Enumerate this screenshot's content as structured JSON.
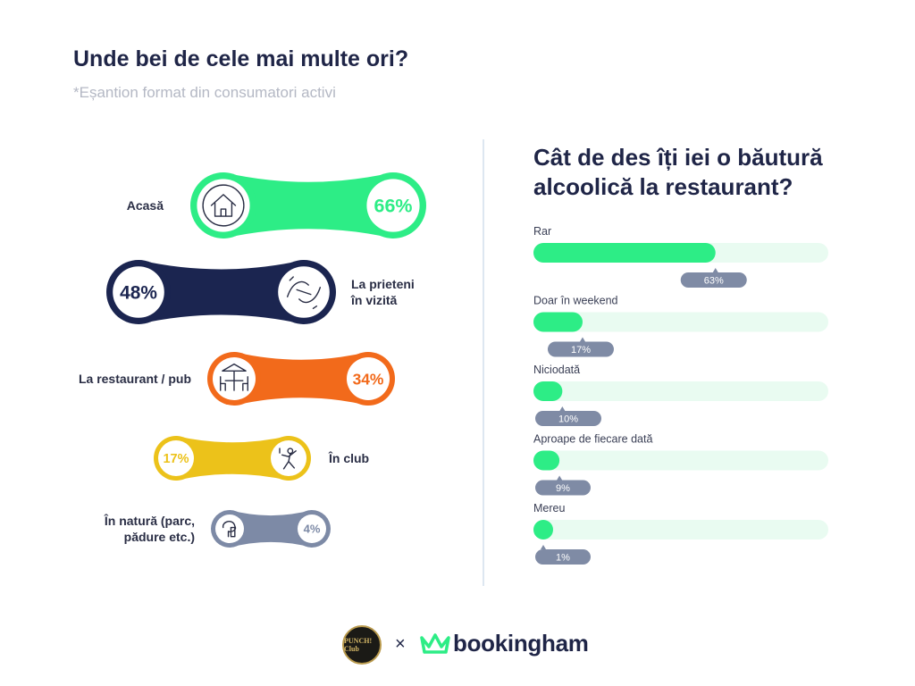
{
  "left": {
    "title": "Unde bei de cele mai multe ori?",
    "subtitle": "*Eșantion format din consumatori activi"
  },
  "right": {
    "title_line1": "Cât de des îți iei o băutură",
    "title_line2": "alcoolică la restaurant?"
  },
  "chart_data": [
    {
      "type": "bar",
      "title": "Unde bei de cele mai multe ori?",
      "orientation": "pictorial-dumbbell",
      "categories": [
        "Acasă",
        "La prieteni în vizită",
        "La restaurant / pub",
        "În club",
        "În natură (parc, pădure etc.)"
      ],
      "label_lines": [
        [
          "Acasă"
        ],
        [
          "La prieteni",
          "în vizită"
        ],
        [
          "La restaurant / pub"
        ],
        [
          "În club"
        ],
        [
          "În natură (parc,",
          "pădure etc.)"
        ]
      ],
      "values": [
        66,
        48,
        34,
        17,
        4
      ],
      "value_labels": [
        "66%",
        "48%",
        "34%",
        "17%",
        "4%"
      ],
      "icons": [
        "house-icon",
        "hands-icon",
        "restaurant-table-icon",
        "dancer-icon",
        "tree-house-icon"
      ],
      "colors": [
        "#2ded86",
        "#1b2550",
        "#f26a1b",
        "#ecc21a",
        "#7d8aa6"
      ],
      "unit": "%"
    },
    {
      "type": "bar",
      "title": "Cât de des îți iei o băutură alcoolică la restaurant?",
      "orientation": "horizontal",
      "categories": [
        "Rar",
        "Doar în weekend",
        "Niciodată",
        "Aproape de fiecare dată",
        "Mereu"
      ],
      "values": [
        63,
        17,
        10,
        9,
        1
      ],
      "value_labels": [
        "63%",
        "17%",
        "10%",
        "9%",
        "1%"
      ],
      "xlim": [
        0,
        100
      ],
      "colors": {
        "bar": "#2ded86",
        "track": "#e9fbf1",
        "badge": "#7f8ba5"
      },
      "unit": "%"
    }
  ],
  "footer": {
    "partner_logo_text": "PUNCH! Club",
    "separator": "×",
    "brand": "bookingham"
  }
}
